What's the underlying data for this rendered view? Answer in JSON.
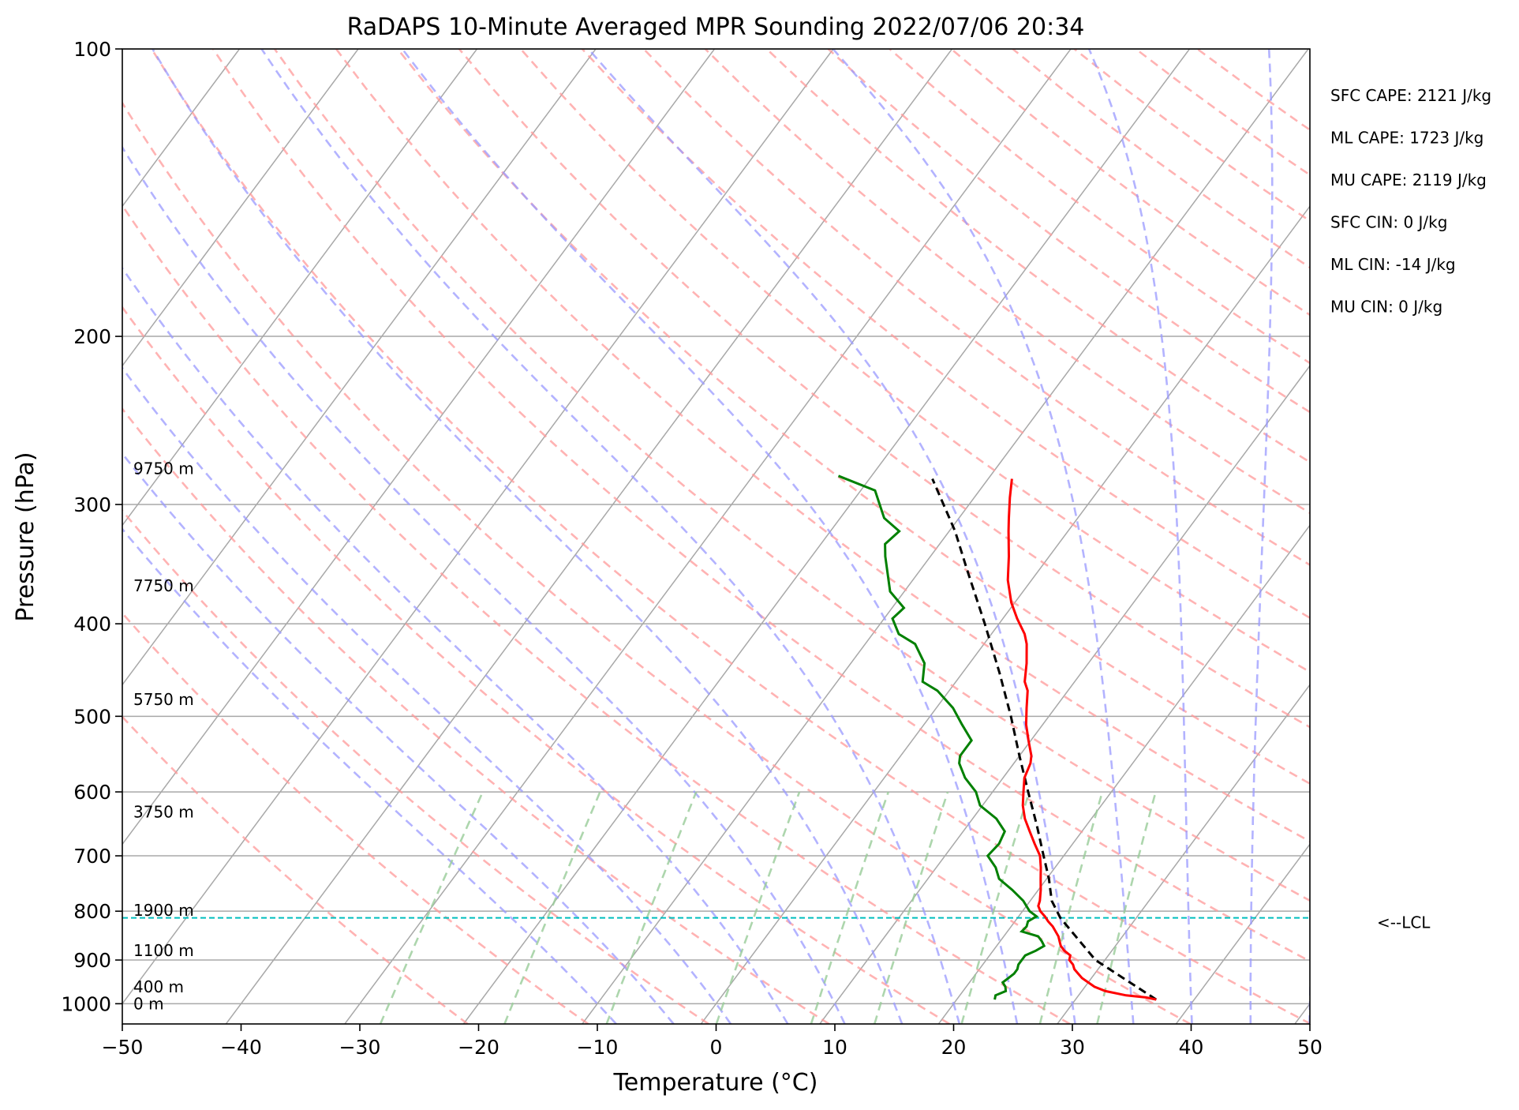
{
  "chart_data": {
    "type": "line",
    "subtype": "skew-t log-p",
    "title": "RaDAPS 10-Minute Averaged MPR Sounding 2022/07/06 20:34",
    "xlabel": "Temperature (°C)",
    "ylabel": "Pressure (hPa)",
    "xlim": [
      -50,
      50
    ],
    "ylim": [
      1050,
      100
    ],
    "yscale": "log",
    "grid": true,
    "x_ticks": [
      -50,
      -40,
      -30,
      -20,
      -10,
      0,
      10,
      20,
      30,
      40,
      50
    ],
    "x_tick_labels": [
      "−50",
      "−40",
      "−30",
      "−20",
      "−10",
      "0",
      "10",
      "20",
      "30",
      "40",
      "50"
    ],
    "y_ticks": [
      100,
      200,
      300,
      400,
      500,
      600,
      700,
      800,
      900,
      1000
    ],
    "y_tick_labels": [
      "100",
      "200",
      "300",
      "400",
      "500",
      "600",
      "700",
      "800",
      "900",
      "1000"
    ],
    "colors": {
      "temperature": "#ff0000",
      "dewpoint": "#008000",
      "parcel": "#000000",
      "lcl": "#00bfbf",
      "dry_adiabat": "#ff9999",
      "moist_adiabat": "#9999ff",
      "mixing_ratio": "#99cc99",
      "isotherm": "#a8a8a8"
    },
    "series": [
      {
        "key": "temperature",
        "pressure": [
          990,
          985,
          980,
          970,
          960,
          950,
          940,
          930,
          920,
          910,
          900,
          890,
          880,
          870,
          860,
          850,
          830,
          820,
          810,
          800,
          790,
          780,
          760,
          740,
          720,
          700,
          680,
          660,
          640,
          620,
          600,
          580,
          560,
          550,
          530,
          510,
          490,
          470,
          460,
          440,
          420,
          410,
          395,
          380,
          360,
          340,
          320,
          310,
          295,
          282
        ],
        "temperature": [
          36.8,
          35.8,
          34.0,
          32.0,
          30.8,
          30.0,
          29.2,
          28.6,
          28.0,
          27.6,
          27.0,
          26.8,
          26.0,
          25.4,
          25.0,
          24.6,
          23.5,
          22.8,
          22.2,
          21.5,
          21.0,
          20.8,
          20.2,
          19.5,
          18.8,
          18.0,
          16.8,
          15.6,
          14.4,
          13.4,
          12.6,
          11.8,
          11.4,
          11.0,
          9.8,
          8.6,
          7.6,
          6.6,
          5.8,
          4.8,
          3.6,
          2.8,
          1.2,
          -0.3,
          -2.0,
          -3.4,
          -5.0,
          -5.8,
          -7.0,
          -8.0
        ]
      },
      {
        "key": "dewpoint",
        "pressure": [
          990,
          980,
          970,
          960,
          950,
          940,
          930,
          920,
          910,
          900,
          890,
          880,
          870,
          860,
          850,
          840,
          830,
          820,
          810,
          800,
          780,
          760,
          740,
          720,
          700,
          680,
          660,
          640,
          620,
          600,
          580,
          560,
          550,
          530,
          510,
          490,
          470,
          460,
          440,
          420,
          410,
          395,
          385,
          370,
          340,
          330,
          320,
          310,
          290,
          280
        ],
        "dewpoint": [
          23.2,
          23.0,
          23.6,
          23.3,
          22.8,
          23.0,
          23.2,
          23.2,
          23.0,
          23.0,
          23.0,
          23.6,
          24.0,
          23.5,
          22.9,
          21.2,
          21.3,
          21.1,
          21.5,
          20.6,
          19.4,
          17.8,
          16.0,
          15.0,
          13.6,
          13.8,
          13.5,
          12.0,
          9.8,
          8.6,
          6.8,
          5.4,
          5.0,
          5.0,
          3.2,
          1.4,
          -1.0,
          -2.8,
          -3.8,
          -5.8,
          -7.8,
          -9.3,
          -9.0,
          -11.2,
          -13.8,
          -14.6,
          -14.2,
          -16.3,
          -18.8,
          -22.8
        ]
      },
      {
        "key": "parcel",
        "pressure": [
          990,
          900,
          813,
          780,
          740,
          700,
          650,
          600,
          550,
          500,
          450,
          400,
          350,
          320,
          282
        ],
        "temperature": [
          36.8,
          29.2,
          23.6,
          21.8,
          20.2,
          18.3,
          15.8,
          13.0,
          10.0,
          6.8,
          3.1,
          -1.2,
          -6.2,
          -9.5,
          -14.7
        ]
      }
    ],
    "lcl_pressure": 813,
    "lcl_label": "<--LCL",
    "height_labels": [
      {
        "text": "9750 m",
        "pressure": 275
      },
      {
        "text": "7750 m",
        "pressure": 365
      },
      {
        "text": "5750 m",
        "pressure": 480
      },
      {
        "text": "3750 m",
        "pressure": 630
      },
      {
        "text": "1900 m",
        "pressure": 798
      },
      {
        "text": "1100 m",
        "pressure": 880
      },
      {
        "text": "400 m",
        "pressure": 960
      },
      {
        "text": "0 m",
        "pressure": 1000
      }
    ],
    "annotations": [
      "SFC CAPE: 2121 J/kg",
      "ML CAPE: 1723 J/kg",
      "MU CAPE: 2119 J/kg",
      "SFC CIN: 0 J/kg",
      "ML CIN: -14 J/kg",
      "MU CIN: 0 J/kg"
    ],
    "dry_adiabats_theta_k": [
      250,
      260,
      270,
      280,
      290,
      300,
      310,
      320,
      330,
      340,
      350,
      360,
      370,
      380,
      390,
      400,
      410,
      420,
      430,
      440,
      450,
      460,
      470,
      480,
      490
    ],
    "moist_adiabats_start_c": [
      -10,
      -5,
      0,
      5,
      10,
      15,
      20,
      25,
      30,
      35,
      40,
      45,
      50
    ],
    "mixing_ratios_gkg": [
      0.4,
      1,
      2,
      4,
      7,
      10,
      16,
      24,
      32
    ],
    "isotherms_c": [
      -160,
      -150,
      -140,
      -130,
      -120,
      -110,
      -100,
      -90,
      -80,
      -70,
      -60,
      -50,
      -40,
      -30,
      -20,
      -10,
      0,
      10,
      20,
      30,
      40,
      50
    ]
  }
}
